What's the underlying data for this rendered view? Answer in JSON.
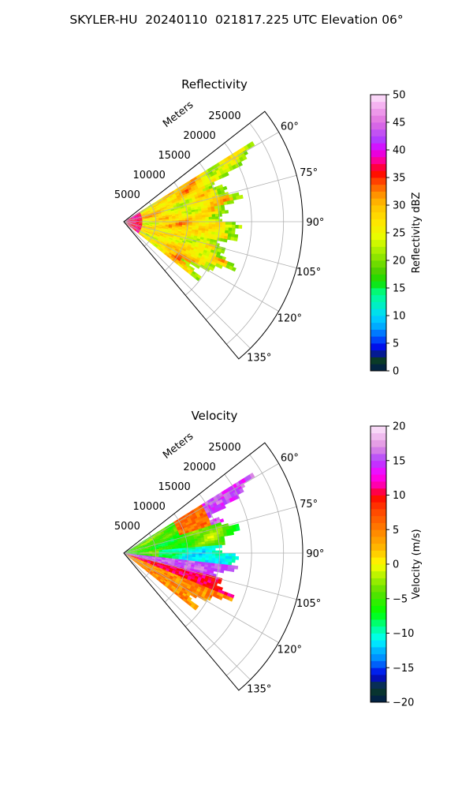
{
  "title": "SKYLER-HU  20240110  021817.225 UTC Elevation 06°",
  "chart_data": [
    {
      "type": "heatmap",
      "projection": "polar-sector",
      "title": "Reflectivity",
      "range_label": "Meters",
      "range_ticks": [
        5000,
        10000,
        15000,
        20000,
        25000
      ],
      "range_max": 28000,
      "azimuth_ticks": [
        "60°",
        "75°",
        "90°",
        "105°",
        "120°",
        "135°"
      ],
      "azimuth_range": [
        52,
        140
      ],
      "colorbar": {
        "label": "Reflectivity dBZ",
        "vmin": 0,
        "vmax": 50,
        "ticks": [
          "0",
          "5",
          "10",
          "15",
          "20",
          "25",
          "30",
          "35",
          "40",
          "45",
          "50"
        ],
        "stops": [
          {
            "v": 0,
            "c": "#001a4d"
          },
          {
            "v": 2,
            "c": "#0b3d26"
          },
          {
            "v": 4,
            "c": "#0000e6"
          },
          {
            "v": 6,
            "c": "#0055ff"
          },
          {
            "v": 8,
            "c": "#00a8ff"
          },
          {
            "v": 10,
            "c": "#00d8ff"
          },
          {
            "v": 12,
            "c": "#00f0c0"
          },
          {
            "v": 14,
            "c": "#00ff90"
          },
          {
            "v": 16,
            "c": "#10e000"
          },
          {
            "v": 18,
            "c": "#4cd000"
          },
          {
            "v": 20,
            "c": "#7ee000"
          },
          {
            "v": 22,
            "c": "#b0f000"
          },
          {
            "v": 24,
            "c": "#e6ff00"
          },
          {
            "v": 27,
            "c": "#ffe600"
          },
          {
            "v": 30,
            "c": "#ffc000"
          },
          {
            "v": 32,
            "c": "#ff9000"
          },
          {
            "v": 34,
            "c": "#ff5000"
          },
          {
            "v": 36,
            "c": "#ff0000"
          },
          {
            "v": 38,
            "c": "#ff0090"
          },
          {
            "v": 40,
            "c": "#e000ff"
          },
          {
            "v": 42,
            "c": "#b040ff"
          },
          {
            "v": 45,
            "c": "#e070e0"
          },
          {
            "v": 48,
            "c": "#f4b0f0"
          },
          {
            "v": 50,
            "c": "#fde6fb"
          }
        ]
      }
    },
    {
      "type": "heatmap",
      "projection": "polar-sector",
      "title": "Velocity",
      "range_label": "Meters",
      "range_ticks": [
        5000,
        10000,
        15000,
        20000,
        25000
      ],
      "range_max": 28000,
      "azimuth_ticks": [
        "60°",
        "75°",
        "90°",
        "105°",
        "120°",
        "135°"
      ],
      "azimuth_range": [
        52,
        140
      ],
      "colorbar": {
        "label": "Velocity (m/s)",
        "vmin": -20,
        "vmax": 20,
        "ticks": [
          "−20",
          "−15",
          "−10",
          "−5",
          "0",
          "5",
          "10",
          "15",
          "20"
        ],
        "stops": [
          {
            "v": -20,
            "c": "#001a4d"
          },
          {
            "v": -18,
            "c": "#0b3d26"
          },
          {
            "v": -16,
            "c": "#0000e6"
          },
          {
            "v": -14,
            "c": "#0080ff"
          },
          {
            "v": -12,
            "c": "#00c8ff"
          },
          {
            "v": -11,
            "c": "#00ffff"
          },
          {
            "v": -9,
            "c": "#00ff90"
          },
          {
            "v": -7,
            "c": "#00ff00"
          },
          {
            "v": -4,
            "c": "#5ce000"
          },
          {
            "v": -2,
            "c": "#a8f000"
          },
          {
            "v": 0,
            "c": "#ffff00"
          },
          {
            "v": 2,
            "c": "#ffc000"
          },
          {
            "v": 5,
            "c": "#ff8000"
          },
          {
            "v": 8,
            "c": "#ff4000"
          },
          {
            "v": 10,
            "c": "#ff0000"
          },
          {
            "v": 11,
            "c": "#ff0090"
          },
          {
            "v": 13,
            "c": "#ff00ff"
          },
          {
            "v": 15,
            "c": "#b040ff"
          },
          {
            "v": 17,
            "c": "#e090e0"
          },
          {
            "v": 20,
            "c": "#fde6fb"
          }
        ]
      }
    }
  ]
}
